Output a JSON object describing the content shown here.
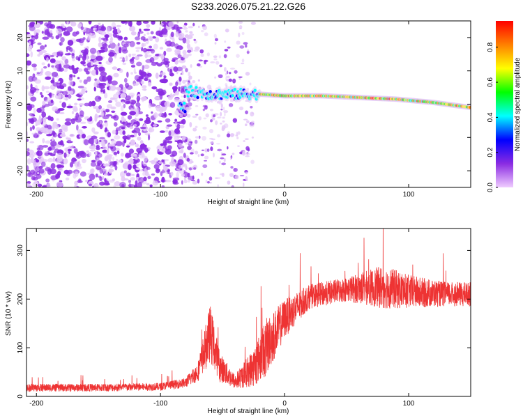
{
  "title": "S233.2026.075.21.22.G26",
  "chart_data": [
    {
      "type": "heatmap",
      "title": "S233.2026.075.21.22.G26",
      "xlabel": "Height of straight line (km)",
      "ylabel": "Frequency (Hz)",
      "xlim": [
        -208,
        150
      ],
      "ylim": [
        -25,
        25
      ],
      "xticks": [
        -200,
        -100,
        0,
        100
      ],
      "yticks": [
        -20,
        -10,
        0,
        10,
        20
      ],
      "colorbar": {
        "label": "Normalized spectral amplitude",
        "range": [
          0.0,
          0.95
        ],
        "ticks": [
          0.0,
          0.2,
          0.4,
          0.6,
          0.8
        ],
        "tick_labels": [
          "0.0",
          "0.2",
          "0.4",
          "0.6",
          "0.8"
        ],
        "colors": [
          "#f0ccff",
          "#8a2be2",
          "#0000ff",
          "#00ffff",
          "#00ff00",
          "#ffff00",
          "#ff8000",
          "#ff0000"
        ]
      },
      "features": {
        "noise_region_km": [
          -208,
          -85
        ],
        "signal_onset_km": -85,
        "tone_track": [
          {
            "x": -80,
            "f": 4
          },
          {
            "x": -60,
            "f": 3
          },
          {
            "x": -40,
            "f": 3
          },
          {
            "x": -20,
            "f": 3
          },
          {
            "x": 0,
            "f": 2.5
          },
          {
            "x": 30,
            "f": 2.5
          },
          {
            "x": 60,
            "f": 2
          },
          {
            "x": 90,
            "f": 1.5
          },
          {
            "x": 120,
            "f": 0.5
          },
          {
            "x": 150,
            "f": -1
          }
        ]
      }
    },
    {
      "type": "line",
      "xlabel": "Height of straight line (km)",
      "ylabel": "SNR (10 * v/v)",
      "xlim": [
        -208,
        150
      ],
      "ylim": [
        0,
        345
      ],
      "xticks": [
        -200,
        -100,
        0,
        100
      ],
      "yticks": [
        0,
        100,
        200,
        300
      ],
      "color": "#ee3333",
      "envelope": [
        {
          "x": -208,
          "mean": 18,
          "spread": 8
        },
        {
          "x": -150,
          "mean": 18,
          "spread": 8
        },
        {
          "x": -100,
          "mean": 20,
          "spread": 8
        },
        {
          "x": -80,
          "mean": 28,
          "spread": 10
        },
        {
          "x": -70,
          "mean": 50,
          "spread": 20
        },
        {
          "x": -60,
          "mean": 130,
          "spread": 60
        },
        {
          "x": -52,
          "mean": 60,
          "spread": 30
        },
        {
          "x": -40,
          "mean": 30,
          "spread": 15
        },
        {
          "x": -25,
          "mean": 60,
          "spread": 40
        },
        {
          "x": -15,
          "mean": 100,
          "spread": 60
        },
        {
          "x": 0,
          "mean": 160,
          "spread": 40
        },
        {
          "x": 20,
          "mean": 205,
          "spread": 25
        },
        {
          "x": 50,
          "mean": 220,
          "spread": 25
        },
        {
          "x": 80,
          "mean": 225,
          "spread": 45
        },
        {
          "x": 100,
          "mean": 215,
          "spread": 35
        },
        {
          "x": 130,
          "mean": 210,
          "spread": 25
        },
        {
          "x": 150,
          "mean": 210,
          "spread": 25
        }
      ]
    }
  ]
}
